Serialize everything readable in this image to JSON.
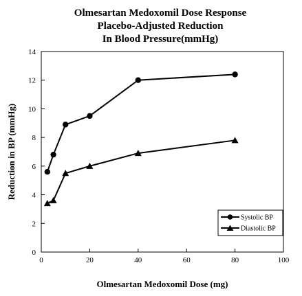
{
  "chart_data": {
    "type": "line",
    "title": [
      "Olmesartan Medoxomil Dose Response",
      "Placebo-Adjusted Reduction",
      "In Blood Pressure(mmHg)"
    ],
    "xlabel": "Olmesartan  Medoxomil Dose (mg)",
    "ylabel": "Reduction in BP (mmHg)",
    "xlim": [
      0,
      100
    ],
    "ylim": [
      0,
      14
    ],
    "xticks": [
      0,
      20,
      40,
      60,
      80,
      100
    ],
    "yticks": [
      0,
      2,
      4,
      6,
      8,
      10,
      12,
      14
    ],
    "grid": false,
    "legend_position": "bottom-right",
    "series": [
      {
        "name": "Systolic BP",
        "marker": "circle",
        "x": [
          2.5,
          5,
          10,
          20,
          40,
          80
        ],
        "y": [
          5.6,
          6.8,
          8.9,
          9.5,
          12.0,
          12.4
        ]
      },
      {
        "name": "Diastolic BP",
        "marker": "triangle",
        "x": [
          2.5,
          5,
          10,
          20,
          40,
          80
        ],
        "y": [
          3.4,
          3.6,
          5.5,
          6.0,
          6.9,
          7.8
        ]
      }
    ],
    "colors": {
      "line": "#000000",
      "background": "#ffffff"
    }
  }
}
